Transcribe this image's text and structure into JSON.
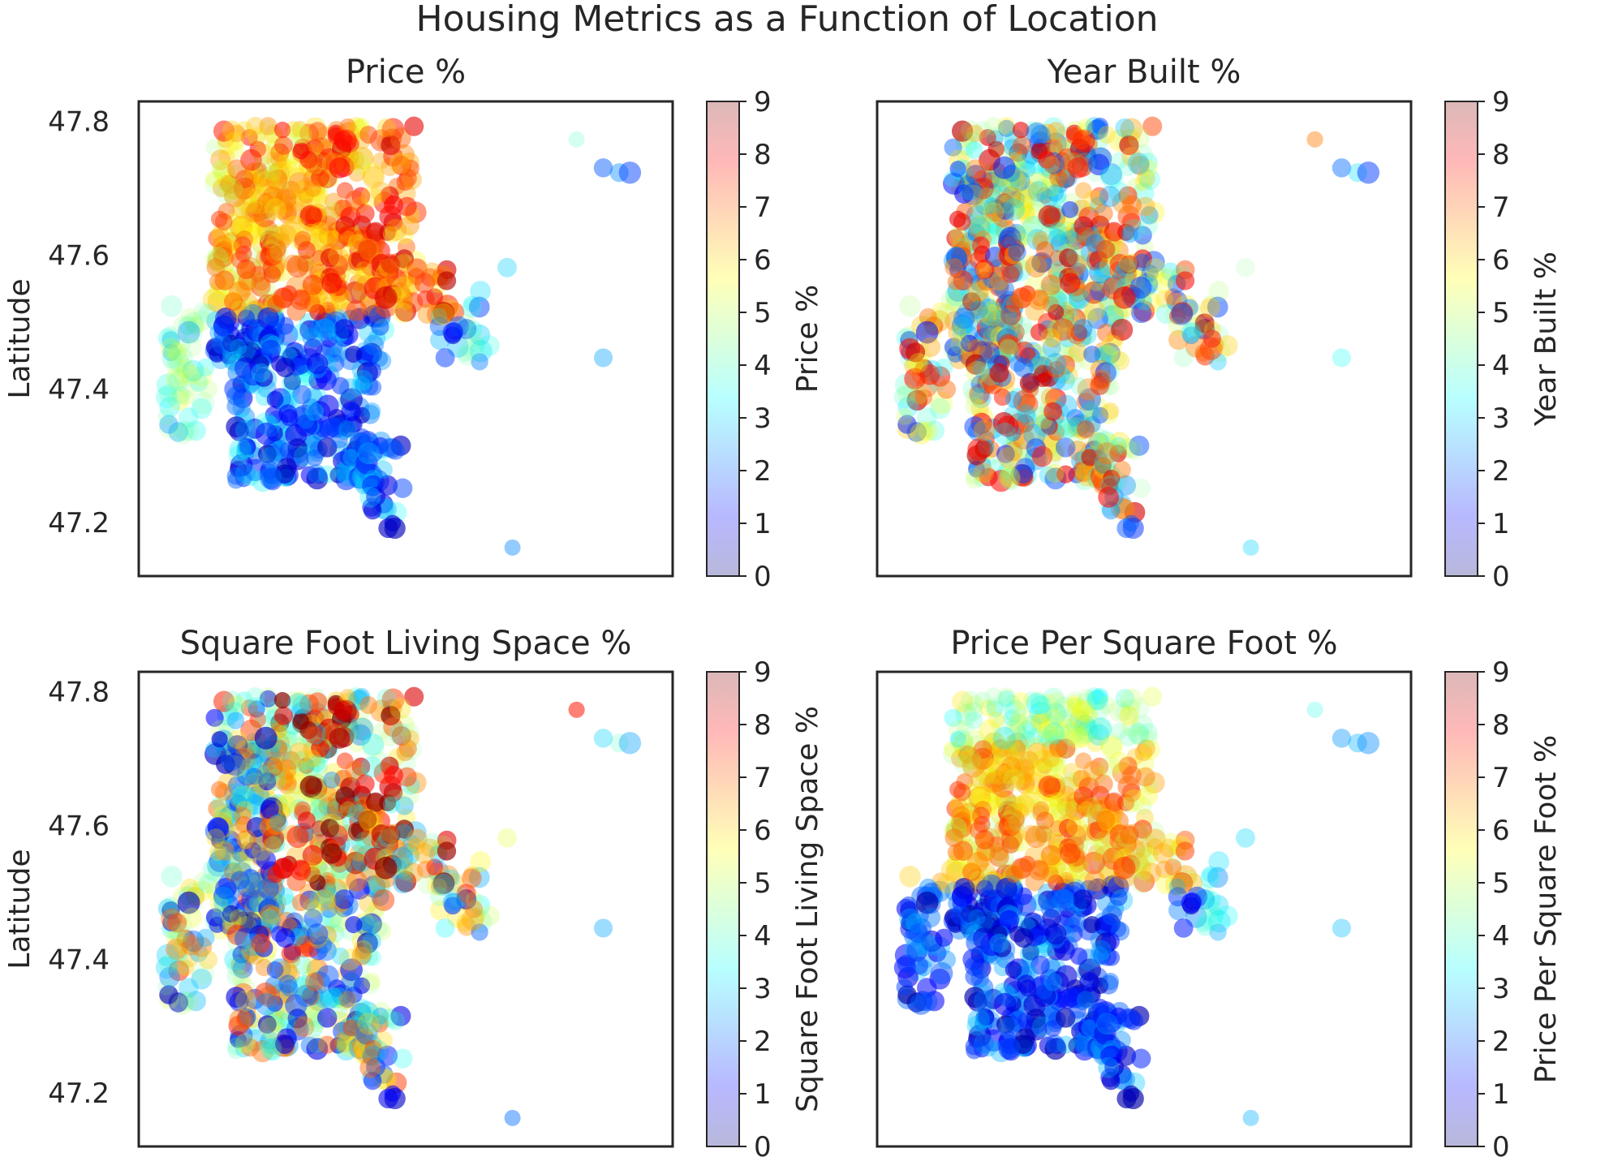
{
  "figure": {
    "title": "Housing Metrics as a Function of Location"
  },
  "colormap": [
    "#00007f",
    "#0000ff",
    "#007fff",
    "#00ffff",
    "#7fff7f",
    "#ffff00",
    "#ff7f00",
    "#ff0000",
    "#7f0000"
  ],
  "chart_data": [
    {
      "type": "scatter",
      "title": "Price %",
      "xlabel": "",
      "ylabel": "Latitude",
      "colorbar_label": "Price %",
      "ylim": [
        47.12,
        47.83
      ],
      "yticks": [
        "47.2",
        "47.4",
        "47.6",
        "47.8"
      ],
      "colorbar_range": [
        0,
        9
      ],
      "colorbar_ticks": [
        "0",
        "1",
        "2",
        "3",
        "4",
        "5",
        "6",
        "7",
        "8",
        "9"
      ],
      "grid": false,
      "variant": "price"
    },
    {
      "type": "scatter",
      "title": "Year Built %",
      "xlabel": "",
      "ylabel": "",
      "colorbar_label": "Year Built %",
      "ylim": [
        47.12,
        47.83
      ],
      "yticks": [],
      "colorbar_range": [
        0,
        9
      ],
      "colorbar_ticks": [
        "0",
        "1",
        "2",
        "3",
        "4",
        "5",
        "6",
        "7",
        "8",
        "9"
      ],
      "grid": false,
      "variant": "year"
    },
    {
      "type": "scatter",
      "title": "Square Foot Living Space %",
      "xlabel": "",
      "ylabel": "Latitude",
      "colorbar_label": "Square Foot Living Space %",
      "ylim": [
        47.12,
        47.83
      ],
      "yticks": [
        "47.2",
        "47.4",
        "47.6",
        "47.8"
      ],
      "colorbar_range": [
        0,
        9
      ],
      "colorbar_ticks": [
        "0",
        "1",
        "2",
        "3",
        "4",
        "5",
        "6",
        "7",
        "8",
        "9"
      ],
      "grid": false,
      "variant": "sqft"
    },
    {
      "type": "scatter",
      "title": "Price Per Square Foot %",
      "xlabel": "",
      "ylabel": "",
      "colorbar_label": "Price Per Square Foot %",
      "ylim": [
        47.12,
        47.83
      ],
      "yticks": [],
      "colorbar_range": [
        0,
        9
      ],
      "colorbar_ticks": [
        "0",
        "1",
        "2",
        "3",
        "4",
        "5",
        "6",
        "7",
        "8",
        "9"
      ],
      "grid": false,
      "variant": "ppsf"
    }
  ]
}
